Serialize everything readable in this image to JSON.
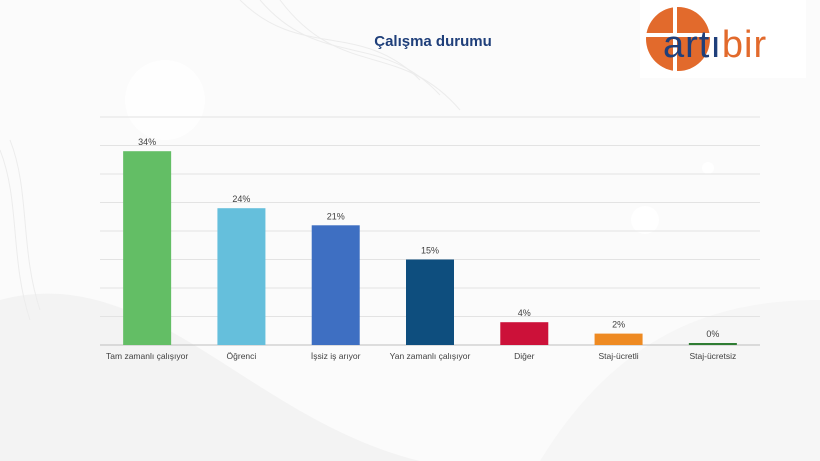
{
  "title": "Çalışma durumu",
  "logo": {
    "text_part1": "artı",
    "text_part2": "bir",
    "colors": [
      "#e26a2c",
      "#1f3f7a"
    ]
  },
  "chart_data": {
    "type": "bar",
    "title": "Çalışma durumu",
    "categories": [
      "Tam zamanlı çalışıyor",
      "Öğrenci",
      "İşsiz iş arıyor",
      "Yan zamanlı çalışıyor",
      "Diğer",
      "Staj-ücretli",
      "Staj-ücretsiz"
    ],
    "values": [
      34,
      24,
      21,
      15,
      4,
      2,
      0
    ],
    "value_labels": [
      "34%",
      "24%",
      "21%",
      "15%",
      "4%",
      "2%",
      "0%"
    ],
    "colors": [
      "#63be65",
      "#65bfdc",
      "#3e6fc2",
      "#0e4e7e",
      "#cc1139",
      "#ee8a22",
      "#2f7d33"
    ],
    "ylim": [
      0,
      40
    ],
    "grid": true,
    "xlabel": "",
    "ylabel": ""
  }
}
